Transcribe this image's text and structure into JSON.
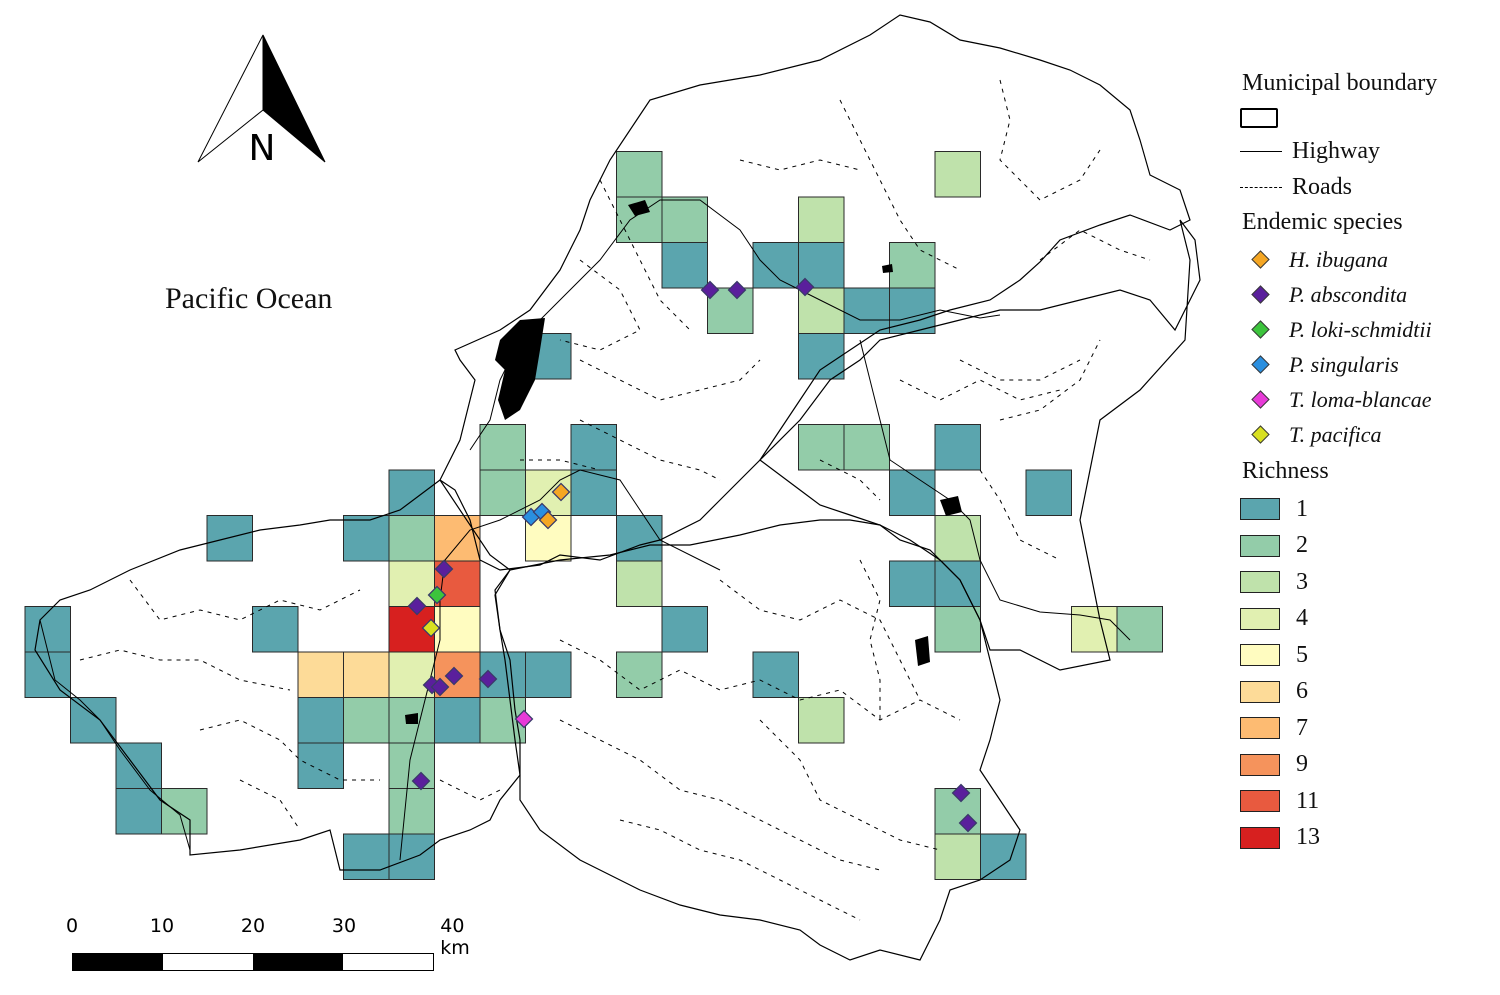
{
  "map": {
    "ocean_label": "Pacific Ocean",
    "north_label": "N",
    "scale": {
      "labels": [
        "0",
        "10",
        "20",
        "30",
        "40 km"
      ]
    }
  },
  "legend": {
    "boundary_title": "Municipal boundary",
    "highway_label": "Highway",
    "roads_label": "Roads",
    "species_title": "Endemic species",
    "species": [
      {
        "name": "H. ibugana",
        "color": "#f5a623"
      },
      {
        "name": "P. abscondita",
        "color": "#5a1f9c"
      },
      {
        "name": "P. loki-schmidtii",
        "color": "#3cc43c"
      },
      {
        "name": "P. singularis",
        "color": "#2a8fe0"
      },
      {
        "name": "T. loma-blancae",
        "color": "#e83ad8"
      },
      {
        "name": "T. pacifica",
        "color": "#d8e020"
      }
    ],
    "richness_title": "Richness",
    "richness": [
      {
        "label": "1",
        "color": "#5ba5ae"
      },
      {
        "label": "2",
        "color": "#93cca9"
      },
      {
        "label": "3",
        "color": "#bfe2ab"
      },
      {
        "label": "4",
        "color": "#e1f0b1"
      },
      {
        "label": "5",
        "color": "#fffcc0"
      },
      {
        "label": "6",
        "color": "#fddb98"
      },
      {
        "label": "7",
        "color": "#fdbb72"
      },
      {
        "label": "9",
        "color": "#f5935c"
      },
      {
        "label": "11",
        "color": "#e85a3f"
      },
      {
        "label": "13",
        "color": "#d7201f"
      }
    ]
  },
  "grid_cells": [
    {
      "r": 3,
      "c": 13,
      "k": 2
    },
    {
      "r": 4,
      "c": 13,
      "k": 2
    },
    {
      "r": 4,
      "c": 14,
      "k": 2
    },
    {
      "r": 5,
      "c": 14,
      "k": 1
    },
    {
      "r": 6,
      "c": 15,
      "k": 2
    },
    {
      "r": 5,
      "c": 16,
      "k": 1
    },
    {
      "r": 4,
      "c": 17,
      "k": 3
    },
    {
      "r": 6,
      "c": 17,
      "k": 3
    },
    {
      "r": 5,
      "c": 17,
      "k": 1
    },
    {
      "r": 3,
      "c": 20,
      "k": 3
    },
    {
      "r": 5,
      "c": 19,
      "k": 2
    },
    {
      "r": 6,
      "c": 18,
      "k": 1
    },
    {
      "r": 6,
      "c": 19,
      "k": 1
    },
    {
      "r": 7,
      "c": 17,
      "k": 1
    },
    {
      "r": 7,
      "c": 11,
      "k": 1
    },
    {
      "r": 9,
      "c": 10,
      "k": 2
    },
    {
      "r": 10,
      "c": 10,
      "k": 2
    },
    {
      "r": 9,
      "c": 12,
      "k": 1
    },
    {
      "r": 10,
      "c": 12,
      "k": 1
    },
    {
      "r": 10,
      "c": 11,
      "k": 4
    },
    {
      "r": 11,
      "c": 11,
      "k": 5
    },
    {
      "r": 11,
      "c": 13,
      "k": 1
    },
    {
      "r": 12,
      "c": 13,
      "k": 3
    },
    {
      "r": 13,
      "c": 14,
      "k": 1
    },
    {
      "r": 14,
      "c": 13,
      "k": 2
    },
    {
      "r": 9,
      "c": 17,
      "k": 2
    },
    {
      "r": 9,
      "c": 18,
      "k": 2
    },
    {
      "r": 9,
      "c": 20,
      "k": 1
    },
    {
      "r": 10,
      "c": 19,
      "k": 1
    },
    {
      "r": 10,
      "c": 22,
      "k": 1
    },
    {
      "r": 11,
      "c": 20,
      "k": 3
    },
    {
      "r": 12,
      "c": 19,
      "k": 1
    },
    {
      "r": 12,
      "c": 20,
      "k": 1
    },
    {
      "r": 13,
      "c": 20,
      "k": 2
    },
    {
      "r": 13,
      "c": 23,
      "k": 4
    },
    {
      "r": 13,
      "c": 24,
      "k": 2
    },
    {
      "r": 14,
      "c": 16,
      "k": 1
    },
    {
      "r": 15,
      "c": 17,
      "k": 3
    },
    {
      "r": 17,
      "c": 20,
      "k": 2
    },
    {
      "r": 18,
      "c": 20,
      "k": 3
    },
    {
      "r": 18,
      "c": 21,
      "k": 1
    },
    {
      "r": 11,
      "c": 4,
      "k": 1
    },
    {
      "r": 10,
      "c": 8,
      "k": 1
    },
    {
      "r": 11,
      "c": 7,
      "k": 1
    },
    {
      "r": 11,
      "c": 8,
      "k": 2
    },
    {
      "r": 11,
      "c": 9,
      "k": 7
    },
    {
      "r": 12,
      "c": 8,
      "k": 4
    },
    {
      "r": 12,
      "c": 9,
      "k": 11
    },
    {
      "r": 13,
      "c": 5,
      "k": 1
    },
    {
      "r": 13,
      "c": 8,
      "k": 13
    },
    {
      "r": 13,
      "c": 9,
      "k": 5
    },
    {
      "r": 13,
      "c": 0,
      "k": 1
    },
    {
      "r": 14,
      "c": 0,
      "k": 1
    },
    {
      "r": 14,
      "c": 6,
      "k": 6
    },
    {
      "r": 14,
      "c": 7,
      "k": 6
    },
    {
      "r": 14,
      "c": 8,
      "k": 4
    },
    {
      "r": 14,
      "c": 9,
      "k": 9
    },
    {
      "r": 14,
      "c": 10,
      "k": 1
    },
    {
      "r": 14,
      "c": 11,
      "k": 1
    },
    {
      "r": 15,
      "c": 1,
      "k": 1
    },
    {
      "r": 15,
      "c": 6,
      "k": 1
    },
    {
      "r": 15,
      "c": 7,
      "k": 2
    },
    {
      "r": 15,
      "c": 8,
      "k": 2
    },
    {
      "r": 15,
      "c": 9,
      "k": 1
    },
    {
      "r": 15,
      "c": 10,
      "k": 2
    },
    {
      "r": 16,
      "c": 6,
      "k": 1
    },
    {
      "r": 16,
      "c": 8,
      "k": 2
    },
    {
      "r": 16,
      "c": 2,
      "k": 1
    },
    {
      "r": 17,
      "c": 2,
      "k": 1
    },
    {
      "r": 17,
      "c": 3,
      "k": 2
    },
    {
      "r": 17,
      "c": 8,
      "k": 2
    },
    {
      "r": 18,
      "c": 7,
      "k": 1
    },
    {
      "r": 18,
      "c": 8,
      "k": 1
    }
  ],
  "occurrences": [
    {
      "sp": "P. abscondita",
      "lon": 710,
      "lat": 290
    },
    {
      "sp": "P. abscondita",
      "lon": 737,
      "lat": 290
    },
    {
      "sp": "P. abscondita",
      "lon": 805,
      "lat": 287
    },
    {
      "sp": "H. ibugana",
      "lon": 561,
      "lat": 492
    },
    {
      "sp": "P. singularis",
      "lon": 531,
      "lat": 517
    },
    {
      "sp": "P. singularis",
      "lon": 542,
      "lat": 512
    },
    {
      "sp": "H. ibugana",
      "lon": 548,
      "lat": 520
    },
    {
      "sp": "P. abscondita",
      "lon": 444,
      "lat": 569
    },
    {
      "sp": "P. abscondita",
      "lon": 417,
      "lat": 606
    },
    {
      "sp": "P. loki-schmidtii",
      "lon": 437,
      "lat": 595
    },
    {
      "sp": "T. pacifica",
      "lon": 431,
      "lat": 628
    },
    {
      "sp": "P. abscondita",
      "lon": 432,
      "lat": 685
    },
    {
      "sp": "P. abscondita",
      "lon": 440,
      "lat": 687
    },
    {
      "sp": "P. abscondita",
      "lon": 454,
      "lat": 676
    },
    {
      "sp": "P. abscondita",
      "lon": 488,
      "lat": 679
    },
    {
      "sp": "T. loma-blancae",
      "lon": 524,
      "lat": 719
    },
    {
      "sp": "P. abscondita",
      "lon": 421,
      "lat": 781
    },
    {
      "sp": "P. abscondita",
      "lon": 961,
      "lat": 793
    },
    {
      "sp": "P. abscondita",
      "lon": 968,
      "lat": 823
    }
  ]
}
